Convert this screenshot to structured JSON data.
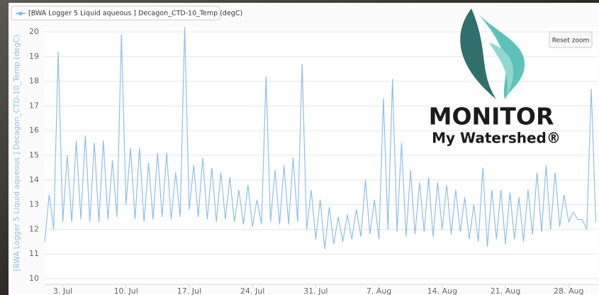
{
  "chart_data": {
    "type": "line",
    "x": [
      1,
      1.5,
      2,
      2.5,
      3,
      3.5,
      4,
      4.5,
      5,
      5.5,
      6,
      6.5,
      7,
      7.5,
      8,
      8.5,
      9,
      9.5,
      10,
      10.5,
      11,
      11.5,
      12,
      12.5,
      13,
      13.5,
      14,
      14.5,
      15,
      15.5,
      16,
      16.5,
      17,
      17.5,
      18,
      18.5,
      19,
      19.5,
      20,
      20.5,
      21,
      21.5,
      22,
      22.5,
      23,
      23.5,
      24,
      24.5,
      25,
      25.5,
      26,
      26.5,
      27,
      27.5,
      28,
      28.5,
      29,
      29.5,
      30,
      30.5,
      31,
      31.5,
      32,
      32.5,
      33,
      33.5,
      34,
      34.5,
      35,
      35.5,
      36,
      36.5,
      37,
      37.5,
      38,
      38.5,
      39,
      39.5,
      40,
      40.5,
      41,
      41.5,
      42,
      42.5,
      43,
      43.5,
      44,
      44.5,
      45,
      45.5,
      46,
      46.5,
      47,
      47.5,
      48,
      48.5,
      49,
      49.5,
      50,
      50.5,
      51,
      51.5,
      52,
      52.5,
      53,
      53.5,
      54,
      54.5,
      55,
      55.5,
      56,
      56.5,
      57,
      57.5,
      58,
      58.5,
      59,
      59.5,
      60,
      60.5,
      61,
      61.5,
      62
    ],
    "series": [
      {
        "name": "[BWA Logger 5 Liquid aqueous ] Decagon_CTD-10_Temp (degC)",
        "color": "#8fbfe8",
        "values": [
          11.5,
          13.4,
          12.0,
          19.2,
          12.3,
          15.0,
          12.3,
          15.6,
          12.4,
          15.8,
          12.3,
          15.5,
          12.3,
          15.6,
          12.4,
          14.8,
          12.5,
          19.9,
          13.0,
          15.3,
          12.4,
          15.3,
          12.3,
          14.7,
          12.4,
          15.1,
          12.5,
          15.1,
          12.4,
          14.3,
          12.5,
          20.2,
          12.8,
          14.6,
          12.5,
          14.9,
          12.4,
          14.5,
          12.3,
          14.3,
          12.4,
          14.1,
          12.3,
          13.6,
          12.2,
          13.8,
          12.1,
          13.2,
          12.2,
          18.2,
          12.3,
          14.4,
          12.2,
          14.6,
          12.2,
          14.9,
          12.3,
          18.7,
          12.0,
          13.6,
          11.6,
          13.2,
          11.2,
          12.9,
          11.4,
          12.5,
          11.5,
          12.6,
          11.6,
          12.8,
          11.7,
          14.0,
          11.8,
          13.2,
          11.6,
          17.3,
          12.0,
          18.1,
          11.9,
          15.5,
          11.7,
          14.4,
          11.8,
          13.9,
          11.9,
          14.1,
          11.7,
          13.9,
          12.0,
          13.8,
          11.8,
          13.6,
          11.9,
          13.3,
          11.6,
          13.0,
          11.5,
          14.5,
          11.3,
          13.6,
          11.6,
          13.6,
          11.4,
          13.5,
          11.6,
          13.3,
          11.5,
          13.6,
          11.8,
          14.3,
          11.9,
          14.6,
          12.0,
          14.3,
          12.1,
          13.4,
          12.3,
          12.7,
          12.4,
          12.4,
          12.0,
          17.7,
          12.3
        ]
      }
    ],
    "xlim": [
      1,
      62.2
    ],
    "xticks": [
      {
        "value": 3,
        "label": "3. Jul"
      },
      {
        "value": 10,
        "label": "10. Jul"
      },
      {
        "value": 17,
        "label": "17. Jul"
      },
      {
        "value": 24,
        "label": "24. Jul"
      },
      {
        "value": 31,
        "label": "31. Jul"
      },
      {
        "value": 38,
        "label": "7. Aug"
      },
      {
        "value": 45,
        "label": "14. Aug"
      },
      {
        "value": 52,
        "label": "21. Aug"
      },
      {
        "value": 59,
        "label": "28. Aug"
      }
    ],
    "ylim": [
      10,
      20.2
    ],
    "yticks": [
      10,
      11,
      12,
      13,
      14,
      15,
      16,
      17,
      18,
      19,
      20
    ],
    "y_label": "[BWA Logger 5 Liquid aqueous ] Decagon_CTD-10_Temp (degC)",
    "grid": true,
    "legend": "top-left"
  },
  "button": "Reset zoom",
  "logo": {
    "line1": "MONITOR",
    "line2": "My Watershed®"
  }
}
